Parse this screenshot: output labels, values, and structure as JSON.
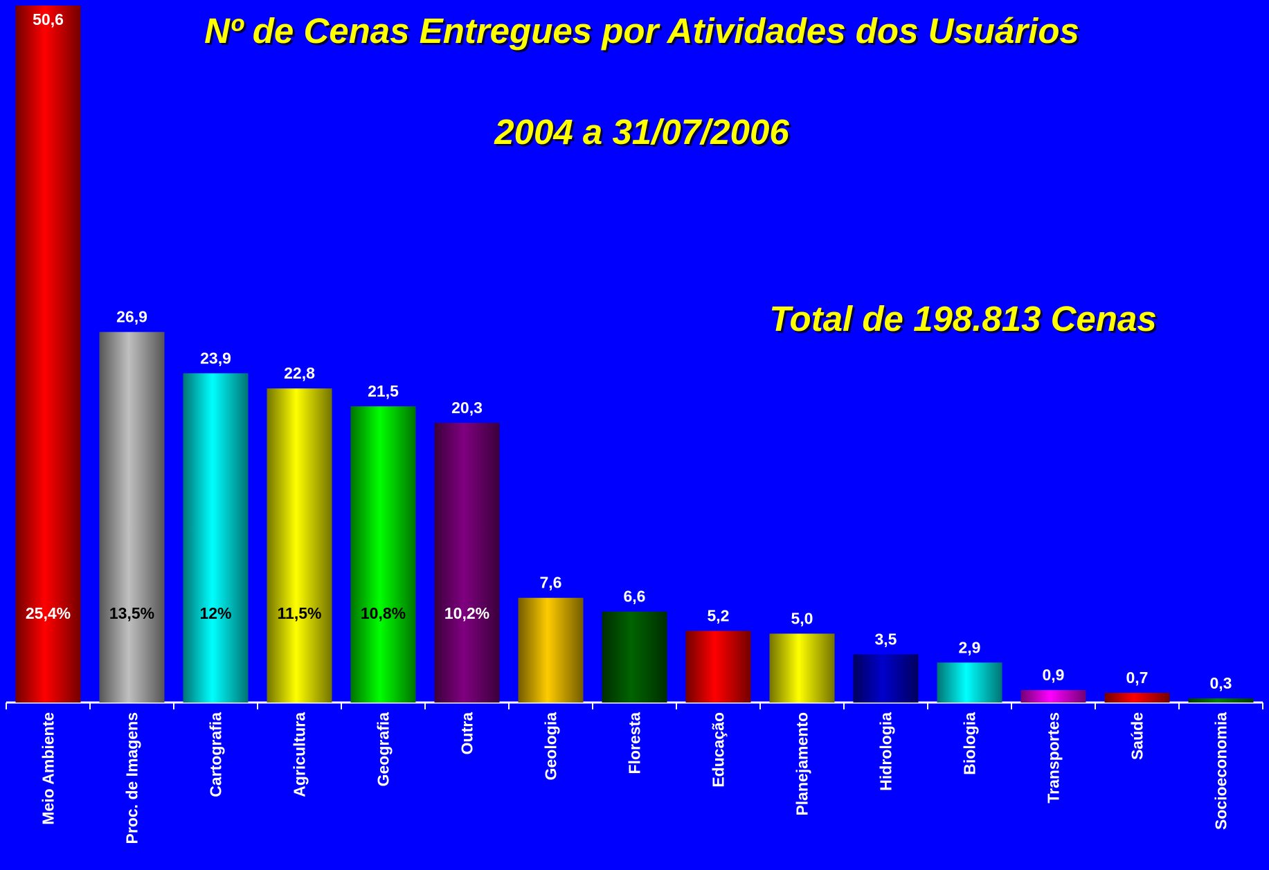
{
  "chart_data": {
    "type": "bar",
    "title": "Nº de Cenas Entregues por Atividades dos Usuários",
    "subtitle": "2004 a 31/07/2006",
    "annotation": "Total de 198.813 Cenas",
    "categories": [
      "Meio Ambiente",
      "Proc. de Imagens",
      "Cartografia",
      "Agricultura",
      "Geografia",
      "Outra",
      "Geologia",
      "Floresta",
      "Educação",
      "Planejamento",
      "Hidrologia",
      "Biologia",
      "Transportes",
      "Saúde",
      "Socioeconomia"
    ],
    "values": [
      50.6,
      26.9,
      23.9,
      22.8,
      21.5,
      20.3,
      7.6,
      6.6,
      5.2,
      5.0,
      3.5,
      2.9,
      0.9,
      0.7,
      0.3
    ],
    "value_labels": [
      "50,6",
      "26,9",
      "23,9",
      "22,8",
      "21,5",
      "20,3",
      "7,6",
      "6,6",
      "5,2",
      "5,0",
      "3,5",
      "2,9",
      "0,9",
      "0,7",
      "0,3"
    ],
    "colors": [
      "#ff0000",
      "#c0c0c0",
      "#00ffff",
      "#ffff00",
      "#00ff00",
      "#800080",
      "#ffcc00",
      "#006400",
      "#ff0000",
      "#ffff00",
      "#0000cc",
      "#00ffff",
      "#ff00ff",
      "#ff0000",
      "#008000"
    ],
    "share_labels": [
      "25,4%",
      "13,5%",
      "12%",
      "11,5%",
      "10,8%",
      "10,2%"
    ],
    "share_label_colors": [
      "#ffffff",
      "#000000",
      "#000000",
      "#000000",
      "#000000",
      "#ffffff"
    ],
    "ylim": [
      0,
      51
    ]
  }
}
